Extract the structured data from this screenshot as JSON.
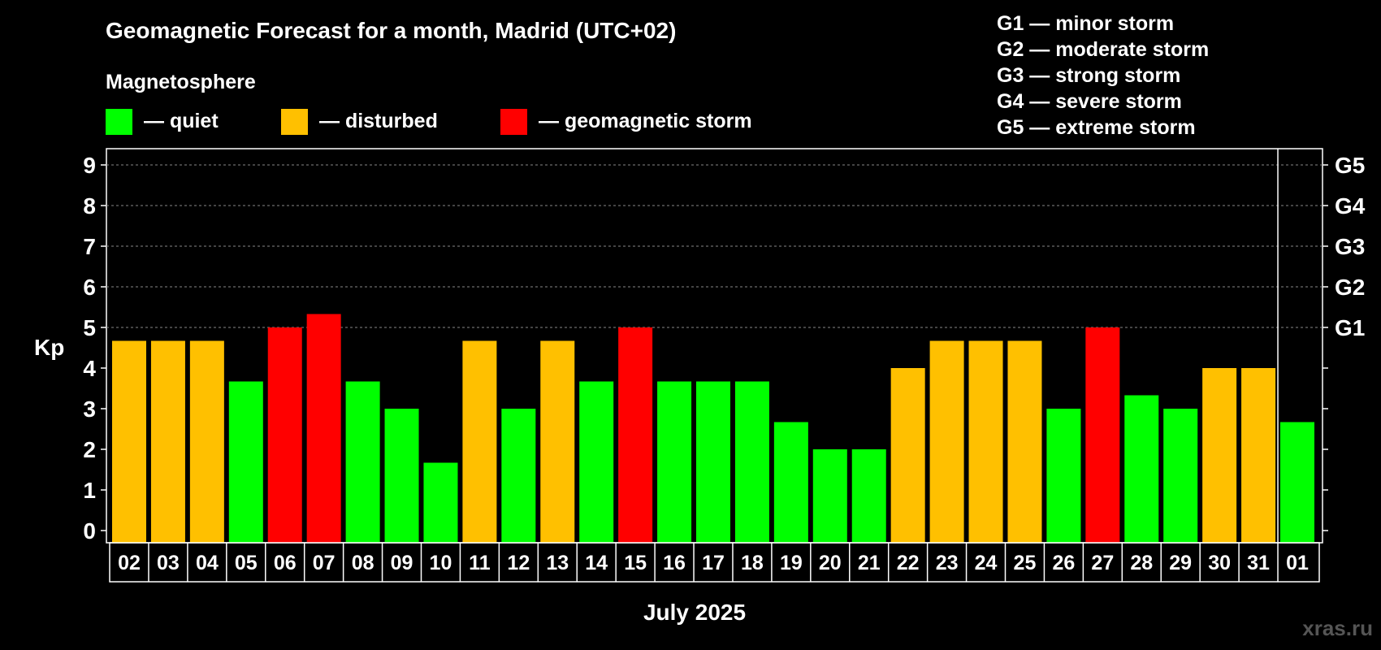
{
  "chart_data": {
    "type": "bar",
    "title": "Geomagnetic Forecast for a month, Madrid (UTC+02)",
    "legend": {
      "heading": "Magnetosphere",
      "items": [
        {
          "label": "— quiet",
          "color": "#00ff00"
        },
        {
          "label": "— disturbed",
          "color": "#ffc000"
        },
        {
          "label": "— geomagnetic storm",
          "color": "#ff0000"
        }
      ]
    },
    "storm_scale": [
      "G1 — minor storm",
      "G2 — moderate storm",
      "G3 — strong storm",
      "G4 — severe storm",
      "G5 — extreme storm"
    ],
    "ylabel": "Kp",
    "xlabel": "July 2025",
    "ylim": [
      0,
      9
    ],
    "yticks": [
      "0",
      "1",
      "2",
      "3",
      "4",
      "5",
      "6",
      "7",
      "8",
      "9"
    ],
    "right_axis": [
      {
        "value": 5,
        "label": "G1"
      },
      {
        "value": 6,
        "label": "G2"
      },
      {
        "value": 7,
        "label": "G3"
      },
      {
        "value": 8,
        "label": "G4"
      },
      {
        "value": 9,
        "label": "G5"
      }
    ],
    "categories": [
      "02",
      "03",
      "04",
      "05",
      "06",
      "07",
      "08",
      "09",
      "10",
      "11",
      "12",
      "13",
      "14",
      "15",
      "16",
      "17",
      "18",
      "19",
      "20",
      "21",
      "22",
      "23",
      "24",
      "25",
      "26",
      "27",
      "28",
      "29",
      "30",
      "31",
      "01"
    ],
    "values": [
      4.67,
      4.67,
      4.67,
      3.67,
      5,
      5.33,
      3.67,
      3,
      1.67,
      4.67,
      3,
      4.67,
      3.67,
      5,
      3.67,
      3.67,
      3.67,
      2.67,
      2,
      2,
      4,
      4.67,
      4.67,
      4.67,
      3,
      5,
      3.33,
      3,
      4,
      4,
      2.67
    ],
    "levels": [
      "disturbed",
      "disturbed",
      "disturbed",
      "quiet",
      "storm",
      "storm",
      "quiet",
      "quiet",
      "quiet",
      "disturbed",
      "quiet",
      "disturbed",
      "quiet",
      "storm",
      "quiet",
      "quiet",
      "quiet",
      "quiet",
      "quiet",
      "quiet",
      "disturbed",
      "disturbed",
      "disturbed",
      "disturbed",
      "quiet",
      "storm",
      "quiet",
      "quiet",
      "disturbed",
      "disturbed",
      "quiet"
    ],
    "level_colors": {
      "quiet": "#00ff00",
      "disturbed": "#ffc000",
      "storm": "#ff0000"
    },
    "month_break_after_index": 29
  },
  "watermark": "xras.ru"
}
